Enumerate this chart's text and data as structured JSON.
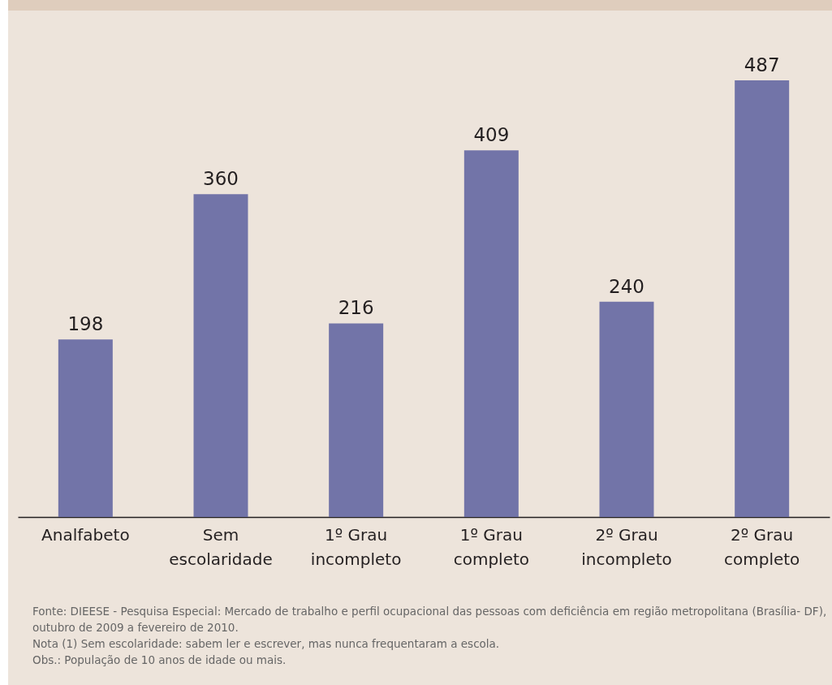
{
  "chart_data": {
    "type": "bar",
    "categories": [
      "Analfabeto",
      "Sem escolaridade",
      "1º Grau incompleto",
      "1º Grau completo",
      "2º Grau incompleto",
      "2º Grau completo"
    ],
    "values": [
      198,
      360,
      216,
      409,
      240,
      487
    ],
    "color": "#7274a8",
    "data_labels": true,
    "annotations": [
      "Fonte: DIEESE - Pesquisa Especial: Mercado de trabalho e perfil ocupacional das pessoas com deficiência em região metropolitana (Brasília- DF), outubro de 2009 a fevereiro de 2010.",
      "Nota (1) Sem escolaridade: sabem ler e escrever, mas nunca frequentaram a escola.",
      "Obs.: População de 10 anos de idade ou mais."
    ]
  }
}
